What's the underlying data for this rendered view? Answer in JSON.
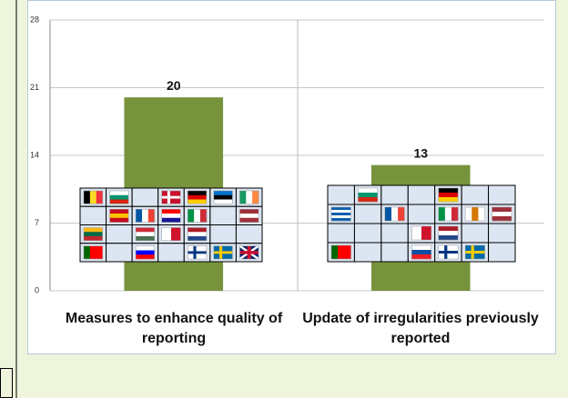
{
  "chart_data": {
    "type": "bar",
    "categories": [
      "Measures to enhance quality of reporting",
      "Update of irregularities previously reported"
    ],
    "values": [
      20,
      13
    ],
    "color": "#77933c",
    "ylim": [
      0,
      28
    ],
    "yticks": [
      0,
      7,
      14,
      21,
      28
    ],
    "grid": true
  }
}
